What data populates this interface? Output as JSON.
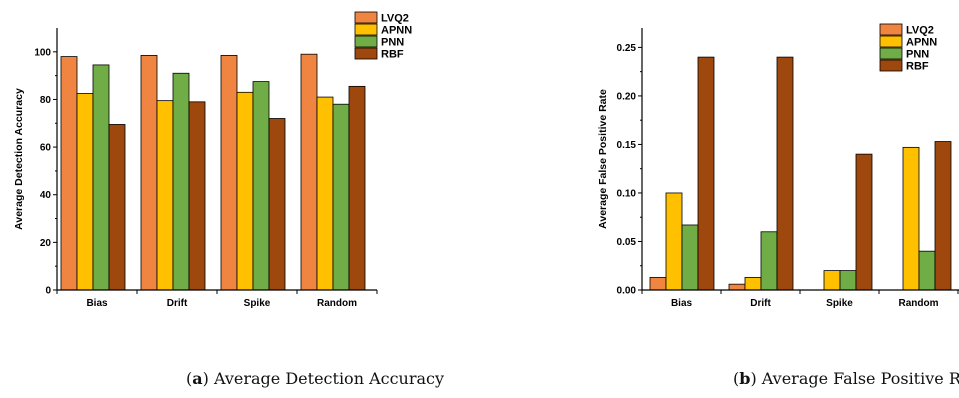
{
  "chart_data": [
    {
      "type": "bar",
      "caption_letter": "a",
      "caption_text": ") Average Detection Accuracy",
      "caption_open": "(",
      "ylabel": "Average Detection Accuracy",
      "xlabel": "",
      "ylim": [
        0,
        110
      ],
      "yticks": [
        0,
        20,
        40,
        60,
        80,
        100
      ],
      "ytick_labels": [
        "0",
        "20",
        "40",
        "60",
        "80",
        "100"
      ],
      "categories": [
        "Bias",
        "Drift",
        "Spike",
        "Random"
      ],
      "series": [
        {
          "name": "LVQ2",
          "color": "#F08542",
          "values": [
            98,
            98.5,
            98.5,
            99
          ]
        },
        {
          "name": "APNN",
          "color": "#FFC000",
          "values": [
            82.5,
            79.5,
            83,
            81
          ]
        },
        {
          "name": "PNN",
          "color": "#70AD47",
          "values": [
            94.5,
            91,
            87.5,
            78
          ]
        },
        {
          "name": "RBF",
          "color": "#9E480E",
          "values": [
            69.5,
            79,
            72,
            85.5
          ]
        }
      ],
      "legend_position": "top-right",
      "grid": false
    },
    {
      "type": "bar",
      "caption_letter": "b",
      "caption_text": ") Average False Positive Rate",
      "caption_open": "(",
      "ylabel": "Average False Positive Rate",
      "xlabel": "",
      "ylim": [
        0,
        0.27
      ],
      "yticks": [
        0,
        0.05,
        0.1,
        0.15,
        0.2,
        0.25
      ],
      "ytick_labels": [
        "0.00",
        "0.05",
        "0.10",
        "0.15",
        "0.20",
        "0.25"
      ],
      "categories": [
        "Bias",
        "Drift",
        "Spike",
        "Random"
      ],
      "series": [
        {
          "name": "LVQ2",
          "color": "#F08542",
          "values": [
            0.013,
            0.006,
            0,
            0
          ]
        },
        {
          "name": "APNN",
          "color": "#FFC000",
          "values": [
            0.1,
            0.013,
            0.02,
            0.147
          ]
        },
        {
          "name": "PNN",
          "color": "#70AD47",
          "values": [
            0.067,
            0.06,
            0.02,
            0.04
          ]
        },
        {
          "name": "RBF",
          "color": "#9E480E",
          "values": [
            0.24,
            0.24,
            0.14,
            0.153
          ]
        }
      ],
      "legend_position": "top-right",
      "grid": false
    }
  ]
}
